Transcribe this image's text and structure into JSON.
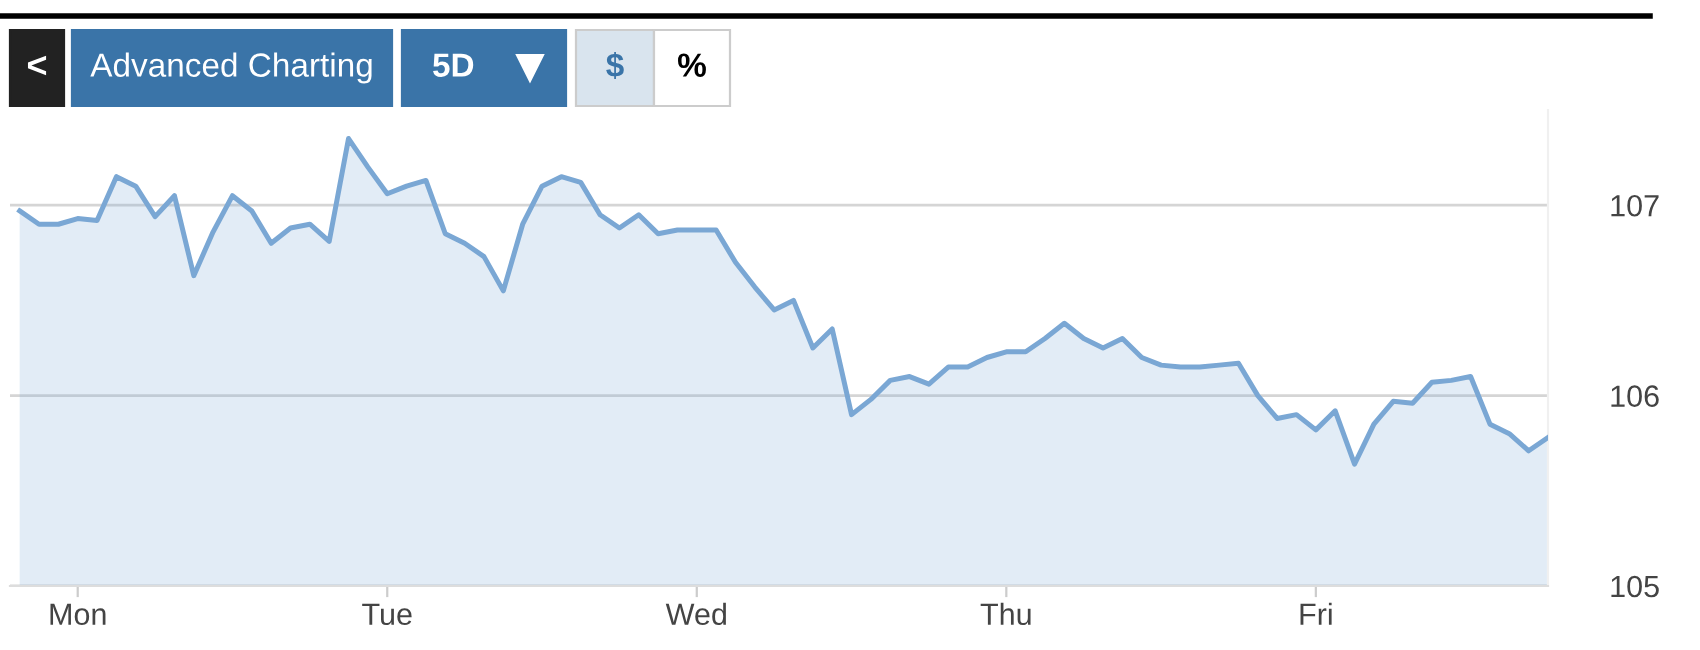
{
  "chart_data": {
    "type": "area",
    "annotations": [
      "<",
      "Advanced Charting",
      "5D",
      "$",
      "%"
    ],
    "categories": [
      null,
      null,
      null,
      "Mon",
      null,
      null,
      null,
      null,
      null,
      null,
      null,
      null,
      null,
      null,
      null,
      null,
      null,
      null,
      null,
      "Tue",
      null,
      null,
      null,
      null,
      null,
      null,
      null,
      null,
      null,
      null,
      null,
      null,
      null,
      null,
      null,
      "Wed",
      null,
      null,
      null,
      null,
      null,
      null,
      null,
      null,
      null,
      null,
      null,
      null,
      null,
      null,
      null,
      "Thu",
      null,
      null,
      null,
      null,
      null,
      null,
      null,
      null,
      null,
      null,
      null,
      null,
      null,
      null,
      null,
      "Fri",
      null,
      null,
      null,
      null,
      null,
      null,
      null,
      null,
      null,
      null,
      null,
      null
    ],
    "series": [
      {
        "color": "#7aa7d4",
        "values": [
          106.97,
          106.9,
          106.9,
          106.93,
          106.92,
          107.15,
          107.1,
          106.94,
          107.05,
          106.63,
          106.86,
          107.05,
          106.97,
          106.8,
          106.88,
          106.9,
          106.81,
          107.35,
          107.2,
          107.06,
          107.1,
          107.13,
          106.85,
          106.8,
          106.73,
          106.55,
          106.9,
          107.1,
          107.15,
          107.12,
          106.95,
          106.88,
          106.95,
          106.85,
          106.87,
          106.87,
          106.87,
          106.7,
          106.57,
          106.45,
          106.5,
          106.25,
          106.35,
          105.9,
          105.98,
          106.08,
          106.1,
          106.06,
          106.15,
          106.15,
          106.2,
          106.23,
          106.23,
          106.3,
          106.38,
          106.3,
          106.25,
          106.3,
          106.2,
          106.16,
          106.15,
          106.15,
          106.16,
          106.17,
          106.0,
          105.88,
          105.9,
          105.82,
          105.92,
          105.64,
          105.85,
          105.97,
          105.96,
          106.07,
          106.08,
          106.1,
          105.85,
          105.8,
          105.71,
          105.78
        ]
      }
    ],
    "ylim": [
      105,
      107.5
    ],
    "yticks": [
      105,
      106,
      107
    ],
    "grid": "y"
  }
}
